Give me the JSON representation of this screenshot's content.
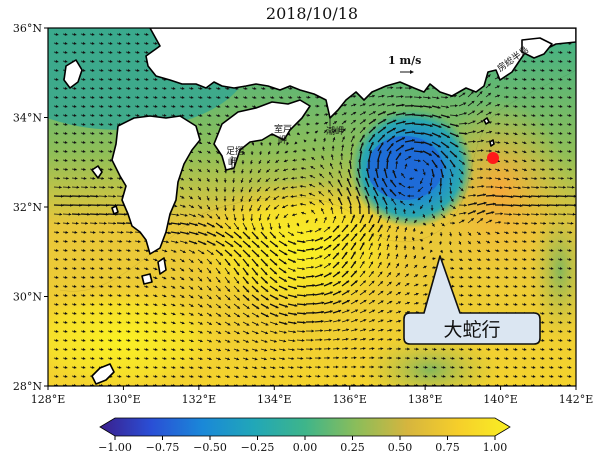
{
  "title": "2018/10/18",
  "map": {
    "lat_ticks": [
      "36°N",
      "34°N",
      "32°N",
      "30°N",
      "28°N"
    ],
    "lon_ticks": [
      "128°E",
      "130°E",
      "132°E",
      "134°E",
      "136°E",
      "138°E",
      "140°E",
      "142°E"
    ],
    "places": {
      "ashizuri": "足摺\n岬",
      "muroto": "室戸\n岬",
      "shiono": "潮岬",
      "boso": "房総半島"
    },
    "scale_label": "1 m/s",
    "callout_text": "大蛇行",
    "marker_color": "#ff1a1a"
  },
  "colorbar": {
    "ticks": [
      "−1.00",
      "−0.75",
      "−0.50",
      "−0.25",
      "0.00",
      "0.25",
      "0.50",
      "0.75",
      "1.00"
    ],
    "colors": [
      "#3b1f8c",
      "#2a4fd6",
      "#1a88d8",
      "#21a7b8",
      "#3eb58a",
      "#8bbd5a",
      "#d6b53e",
      "#f6cf2a",
      "#f9ef24"
    ]
  }
}
